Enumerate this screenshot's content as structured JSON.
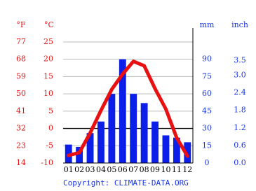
{
  "chart_data": {
    "type": "bar-line",
    "categories": [
      "01",
      "02",
      "03",
      "04",
      "05",
      "06",
      "07",
      "08",
      "09",
      "10",
      "11",
      "12"
    ],
    "series": [
      {
        "type": "bar",
        "axis": "y2",
        "color": "#0b1fe8",
        "values": [
          16,
          14,
          26,
          36,
          60,
          90,
          60,
          52,
          36,
          24,
          22,
          18
        ]
      },
      {
        "type": "line",
        "color": "#e81010",
        "values": [
          -7.8,
          -7,
          -1.3,
          5.2,
          11.3,
          15.7,
          19.4,
          18.1,
          11.5,
          5.6,
          -2.7,
          -8
        ]
      }
    ],
    "ylim": [
      -10,
      25
    ],
    "yticks": [
      -10,
      -5,
      0,
      5,
      10,
      15,
      20,
      25
    ],
    "f_ticks": [
      14,
      23,
      32,
      41,
      50,
      59,
      68,
      77
    ],
    "y2lim": [
      0,
      105
    ],
    "y2ticks": [
      0,
      15,
      30,
      45,
      60,
      75,
      90
    ],
    "inch_ticks": [
      {
        "value": 0,
        "label": "0.0"
      },
      0.6,
      1.2,
      1.8,
      2.4,
      {
        "value": 3,
        "label": "3.0"
      },
      3.5
    ],
    "unit_f": "°F",
    "unit_c": "°C",
    "unit_mm": "mm",
    "unit_inch": "inch",
    "grid": true,
    "credit": "Copyright: CLIMATE-DATA.ORG"
  }
}
